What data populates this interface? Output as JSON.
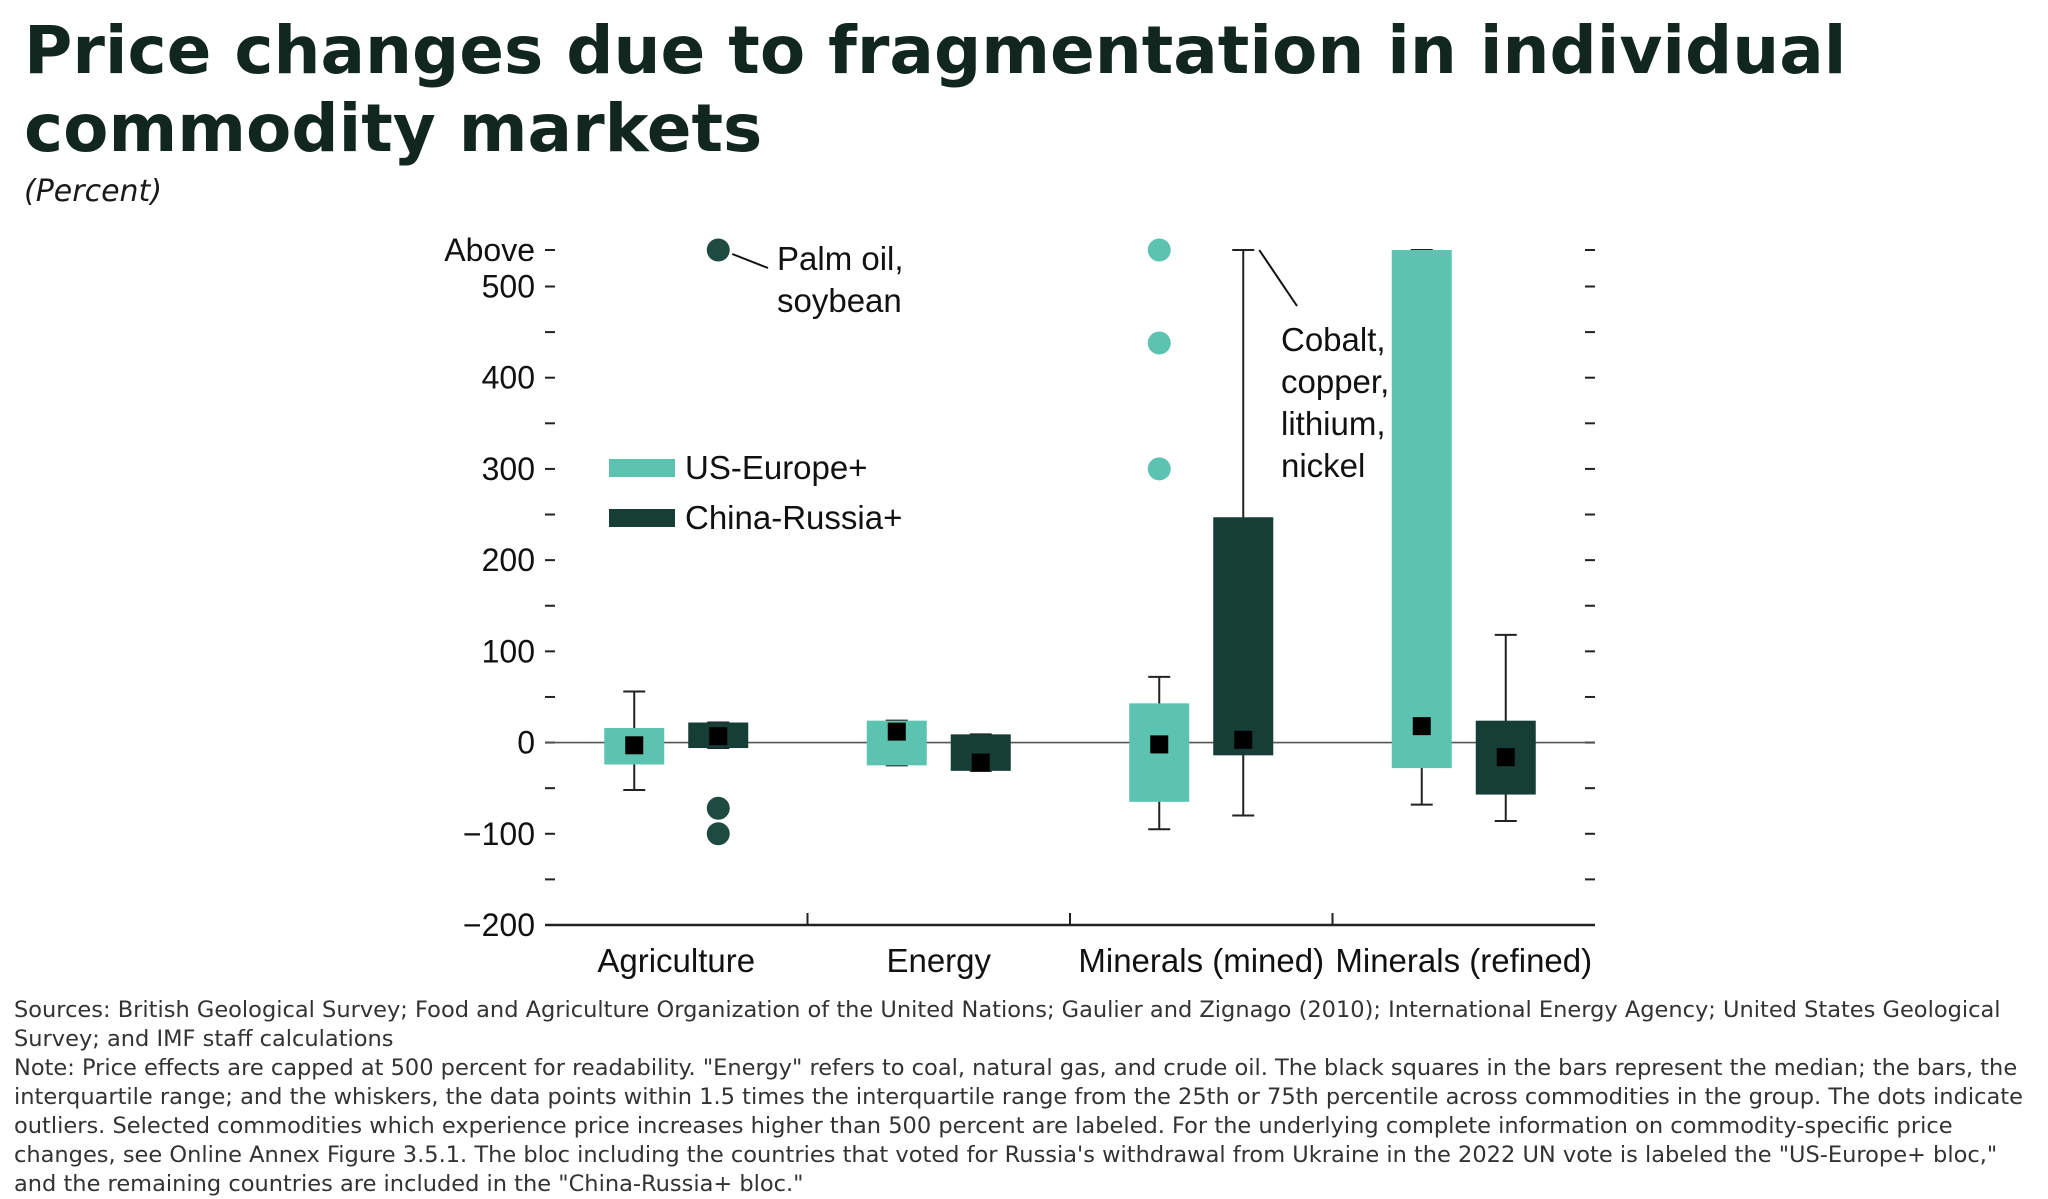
{
  "title": "Price changes due to fragmentation in individual commodity markets",
  "subtitle": "(Percent)",
  "chart_data": {
    "type": "boxplot",
    "y_ticks": [
      {
        "value": 540,
        "label": "Above"
      },
      {
        "value": 500,
        "label": "500"
      },
      {
        "value": 400,
        "label": "400"
      },
      {
        "value": 300,
        "label": "300"
      },
      {
        "value": 200,
        "label": "200"
      },
      {
        "value": 100,
        "label": "100"
      },
      {
        "value": 0,
        "label": "0"
      },
      {
        "value": -100,
        "label": "−100"
      },
      {
        "value": -200,
        "label": "−200"
      }
    ],
    "ylim": [
      -200,
      540
    ],
    "zero_line": true,
    "grid": false,
    "legend": {
      "placement": "upper-left"
    },
    "colors": {
      "US-Europe+": "#5cc3b1",
      "China-Russia+": "#173e35",
      "median": "#000000",
      "outlier_us": "#5cc3b1",
      "outlier_cn": "#1f4a40"
    },
    "categories": [
      "Agriculture",
      "Energy",
      "Minerals (mined)",
      "Minerals (refined)"
    ],
    "series": [
      {
        "name": "US-Europe+",
        "boxes": [
          {
            "whisker_low": -52,
            "q1": -24,
            "median": -3,
            "q3": 16,
            "whisker_high": 56,
            "outliers": []
          },
          {
            "whisker_low": -25,
            "q1": -25,
            "median": 12,
            "q3": 24,
            "whisker_high": 24,
            "outliers": []
          },
          {
            "whisker_low": -95,
            "q1": -65,
            "median": -2,
            "q3": 43,
            "whisker_high": 72,
            "outliers": [
              300,
              438,
              540
            ]
          },
          {
            "whisker_low": -68,
            "q1": -28,
            "median": 18,
            "q3": 540,
            "whisker_high": 540,
            "outliers": []
          }
        ]
      },
      {
        "name": "China-Russia+",
        "boxes": [
          {
            "whisker_low": -6,
            "q1": -6,
            "median": 7,
            "q3": 22,
            "whisker_high": 22,
            "outliers": [
              -72,
              -100,
              540
            ]
          },
          {
            "whisker_low": -31,
            "q1": -31,
            "median": -22,
            "q3": 9,
            "whisker_high": 9,
            "outliers": []
          },
          {
            "whisker_low": -80,
            "q1": -14,
            "median": 3,
            "q3": 247,
            "whisker_high": 540,
            "outliers": []
          },
          {
            "whisker_low": -86,
            "q1": -57,
            "median": -16,
            "q3": 24,
            "whisker_high": 118,
            "outliers": []
          }
        ]
      }
    ],
    "annotations": [
      {
        "lines": [
          "Palm oil,",
          "soybean"
        ]
      },
      {
        "lines": [
          "Cobalt,",
          "copper,",
          "lithium,",
          "nickel"
        ]
      }
    ]
  },
  "notes": {
    "sources": "Sources: British Geological Survey; Food and Agriculture Organization of the United Nations; Gaulier and Zignago (2010); International Energy Agency; United States Geological Survey; and IMF staff calculations",
    "note": "Note: Price effects are capped at 500 percent for readability. \"Energy\" refers to coal, natural gas, and crude oil. The black squares in the bars represent the median; the bars, the interquartile range; and the whiskers, the data points within 1.5 times the interquartile range from the 25th or 75th percentile across commodities in the group. The dots indicate outliers. Selected commodities which experience price increases higher than 500 percent are labeled. For the underlying complete information on commodity-specific price changes, see Online Annex Figure 3.5.1. The bloc including the countries that voted for Russia's withdrawal from Ukraine in the 2022 UN vote is labeled the \"US-Europe+ bloc,\" and the remaining countries are included in the \"China-Russia+ bloc.\""
  }
}
